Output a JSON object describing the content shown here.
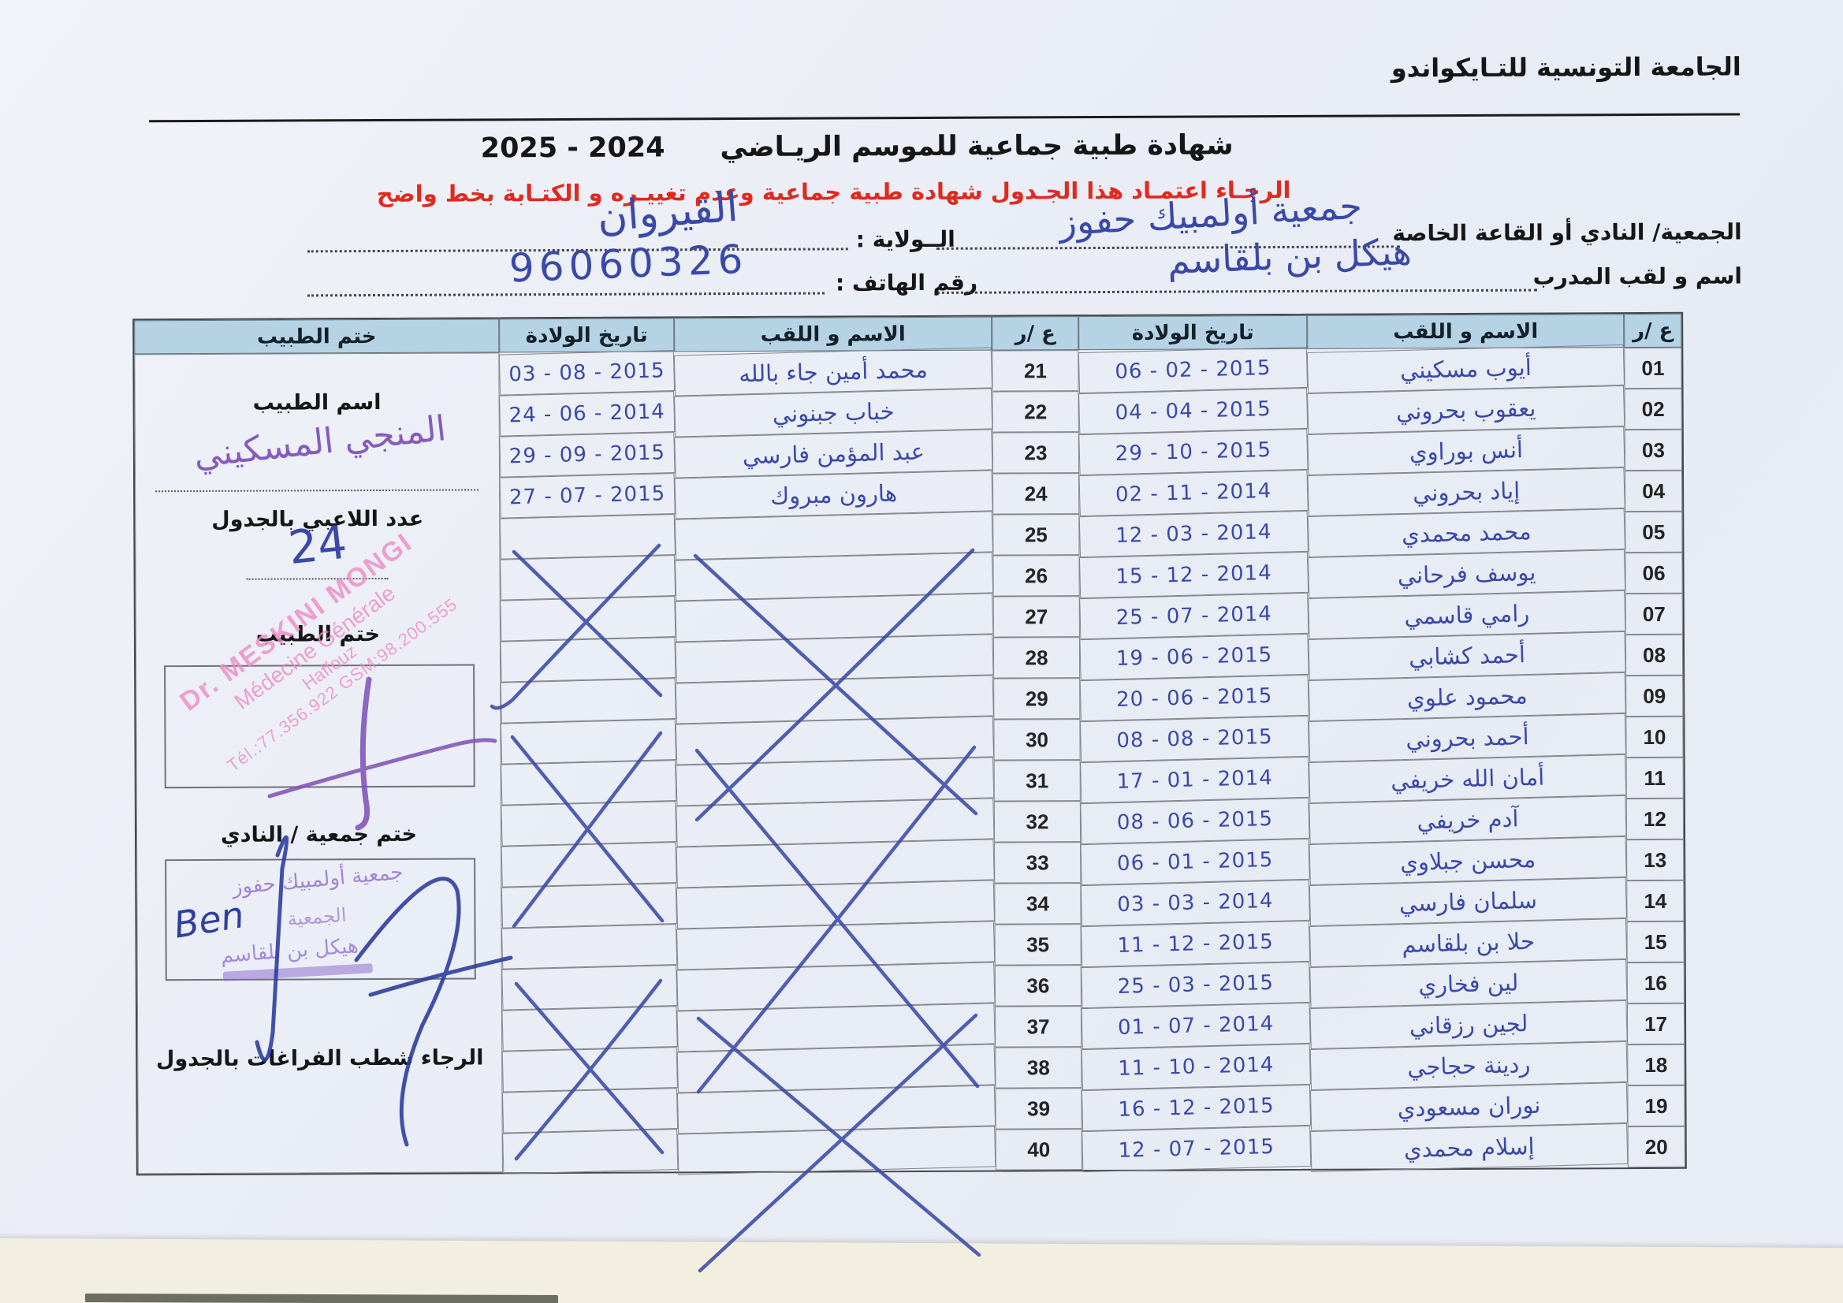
{
  "colors": {
    "header_fill": "#b5d3e4",
    "ink_blue": "#3a49a8",
    "stamp_pink": "#ee8ac5",
    "stamp_purple": "#8a63c9",
    "notice_red": "#e02a1e"
  },
  "page": {
    "org_title": "الجامعة التونسية للتـايكواندو",
    "title": "شهادة طبية جماعية  للموسم الريـاضي",
    "season": "2024  -  2025",
    "notice": "الرجـاء اعتمـاد هذا الجـدول  شهادة طبية جماعية وعدم تغييـره و الكتـابة بخط واضح"
  },
  "form": {
    "club_label": "الجمعية/ النادي أو القاعة الخاصة",
    "club_value": "جمعية أولمبيك حفوز",
    "state_label": "الــولاية :",
    "state_value": "القيروان",
    "coach_label": "اسم و لقب المدرب",
    "coach_value": "هيكل بن بلقاسم",
    "phone_label": "رقم الهاتف :",
    "phone_value": "96060326"
  },
  "table": {
    "headers": {
      "num": "ع /ر",
      "name": "الاسم و اللقب",
      "dob": "تاريخ الولادة",
      "stamp": "ختم الطبيب"
    },
    "players_right": [
      {
        "num": "01",
        "name": "أيوب مسكيني",
        "dob": "2015 - 02 - 06"
      },
      {
        "num": "02",
        "name": "يعقوب بحروني",
        "dob": "2015 - 04 - 04"
      },
      {
        "num": "03",
        "name": "أنس بوراوي",
        "dob": "2015 - 10 - 29"
      },
      {
        "num": "04",
        "name": "إياد بحروني",
        "dob": "2014 - 11 - 02"
      },
      {
        "num": "05",
        "name": "محمد محمدي",
        "dob": "2014 - 03 - 12"
      },
      {
        "num": "06",
        "name": "يوسف فرحاني",
        "dob": "2014 - 12 - 15"
      },
      {
        "num": "07",
        "name": "رامي قاسمي",
        "dob": "2014 - 07 - 25"
      },
      {
        "num": "08",
        "name": "أحمد كشابي",
        "dob": "2015 - 06 - 19"
      },
      {
        "num": "09",
        "name": "محمود علوي",
        "dob": "2015 - 06 - 20"
      },
      {
        "num": "10",
        "name": "أحمد بحروني",
        "dob": "2015 - 08 - 08"
      },
      {
        "num": "11",
        "name": "أمان الله خريفي",
        "dob": "2014 - 01 - 17"
      },
      {
        "num": "12",
        "name": "آدم خريفي",
        "dob": "2015 - 06 - 08"
      },
      {
        "num": "13",
        "name": "محسن جبلاوي",
        "dob": "2015 - 01 - 06"
      },
      {
        "num": "14",
        "name": "سلمان فارسي",
        "dob": "2014 - 03 - 03"
      },
      {
        "num": "15",
        "name": "حلا بن بلقاسم",
        "dob": "2015 - 12 - 11"
      },
      {
        "num": "16",
        "name": "لين فخاري",
        "dob": "2015 - 03 - 25"
      },
      {
        "num": "17",
        "name": "لجين رزقاني",
        "dob": "2014 - 07 - 01"
      },
      {
        "num": "18",
        "name": "ردينة حجاجي",
        "dob": "2014 - 10 - 11"
      },
      {
        "num": "19",
        "name": "نوران مسعودي",
        "dob": "2015 - 12 - 16"
      },
      {
        "num": "20",
        "name": "إسلام محمدي",
        "dob": "2015 - 07 - 12"
      }
    ],
    "players_left": [
      {
        "num": "21",
        "name": "محمد أمين جاء بالله",
        "dob": "2015 - 08 - 03"
      },
      {
        "num": "22",
        "name": "خباب جبنوني",
        "dob": "2014 - 06 - 24"
      },
      {
        "num": "23",
        "name": "عبد المؤمن فارسي",
        "dob": "2015 - 09 - 29"
      },
      {
        "num": "24",
        "name": "هارون مبروك",
        "dob": "2015 - 07 - 27"
      },
      {
        "num": "25",
        "name": "",
        "dob": ""
      },
      {
        "num": "26",
        "name": "",
        "dob": ""
      },
      {
        "num": "27",
        "name": "",
        "dob": ""
      },
      {
        "num": "28",
        "name": "",
        "dob": ""
      },
      {
        "num": "29",
        "name": "",
        "dob": ""
      },
      {
        "num": "30",
        "name": "",
        "dob": ""
      },
      {
        "num": "31",
        "name": "",
        "dob": ""
      },
      {
        "num": "32",
        "name": "",
        "dob": ""
      },
      {
        "num": "33",
        "name": "",
        "dob": ""
      },
      {
        "num": "34",
        "name": "",
        "dob": ""
      },
      {
        "num": "35",
        "name": "",
        "dob": ""
      },
      {
        "num": "36",
        "name": "",
        "dob": ""
      },
      {
        "num": "37",
        "name": "",
        "dob": ""
      },
      {
        "num": "38",
        "name": "",
        "dob": ""
      },
      {
        "num": "39",
        "name": "",
        "dob": ""
      },
      {
        "num": "40",
        "name": "",
        "dob": ""
      }
    ]
  },
  "panel": {
    "doctor_name_label": "اسم الطبيب",
    "doctor_signature": "المنجي المسكيني",
    "players_count_label": "عدد اللاعبي بالجدول",
    "players_count_value": "24",
    "doctor_stamp_label": "ختم الطبيب",
    "stamp_lines": [
      "Dr. MESKINI MONGI",
      "Médecine Générale",
      "Haffouz",
      "Tél.:77.356.922  GSM:98.200.555"
    ],
    "club_stamp_label": "ختم جمعية / النادي",
    "club_stamp_lines": [
      "جمعية أولمبيك حفوز",
      "الجمعية",
      "هيكل بن بلقاسم"
    ],
    "club_signature": "Ben",
    "footer_note": "الرجاء شطب  الفراغات بالجدول"
  }
}
